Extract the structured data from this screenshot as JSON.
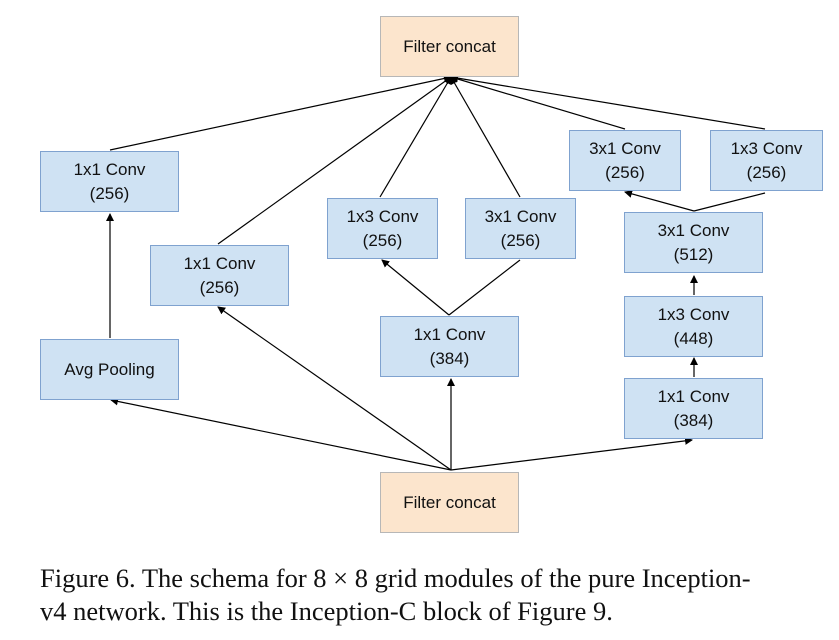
{
  "nodes": {
    "filter_concat_top": {
      "line1": "Filter concat"
    },
    "conv_1x1_pool": {
      "line1": "1x1 Conv",
      "line2": "(256)"
    },
    "avg_pooling": {
      "line1": "Avg Pooling"
    },
    "conv_1x1_direct": {
      "line1": "1x1 Conv",
      "line2": "(256)"
    },
    "conv_1x3_mid": {
      "line1": "1x3 Conv",
      "line2": "(256)"
    },
    "conv_3x1_mid": {
      "line1": "3x1 Conv",
      "line2": "(256)"
    },
    "conv_1x1_mid": {
      "line1": "1x1 Conv",
      "line2": "(384)"
    },
    "conv_3x1_right_top": {
      "line1": "3x1 Conv",
      "line2": "(256)"
    },
    "conv_1x3_right_top": {
      "line1": "1x3 Conv",
      "line2": "(256)"
    },
    "conv_3x1_right_512": {
      "line1": "3x1 Conv",
      "line2": "(512)"
    },
    "conv_1x3_right_448": {
      "line1": "1x3 Conv",
      "line2": "(448)"
    },
    "conv_1x1_right_384": {
      "line1": "1x1 Conv",
      "line2": "(384)"
    },
    "filter_concat_bottom": {
      "line1": "Filter concat"
    }
  },
  "caption": {
    "line1": "Figure 6. The schema for 8 × 8 grid modules of the pure Inception-",
    "line2": "v4 network. This is the Inception-C block of Figure 9."
  },
  "colors": {
    "conv_fill": "#cfe2f3",
    "conv_border": "#7fa2cf",
    "concat_fill": "#fce5cd",
    "edge": "#000000"
  }
}
